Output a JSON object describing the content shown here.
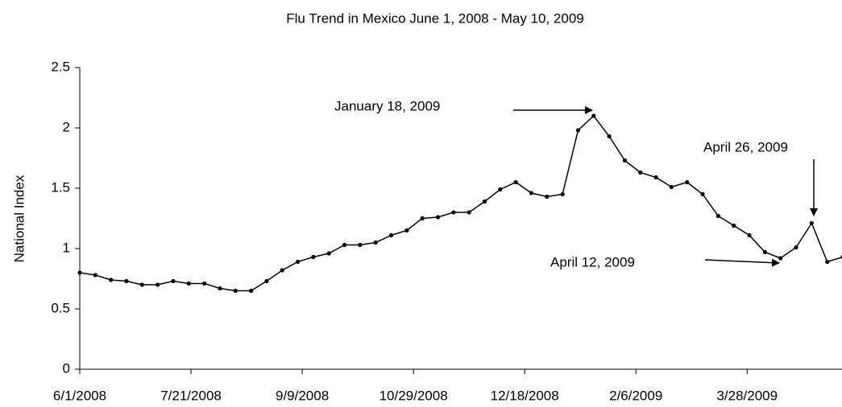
{
  "chart_data": {
    "type": "line",
    "title": "Flu Trend in Mexico June 1, 2008 - May 10, 2009",
    "y_label": "National Index",
    "annotations": [
      "January 18, 2009",
      "April 26, 2009",
      "April 12, 2009"
    ],
    "x": [
      "6/1/2008",
      "6/8/2008",
      "6/15/2008",
      "6/22/2008",
      "6/29/2008",
      "7/6/2008",
      "7/13/2008",
      "7/20/2008",
      "7/27/2008",
      "8/3/2008",
      "8/10/2008",
      "8/17/2008",
      "8/24/2008",
      "8/31/2008",
      "9/7/2008",
      "9/14/2008",
      "9/21/2008",
      "9/28/2008",
      "10/5/2008",
      "10/12/2008",
      "10/19/2008",
      "10/26/2008",
      "11/2/2008",
      "11/9/2008",
      "11/16/2008",
      "11/23/2008",
      "11/30/2008",
      "12/7/2008",
      "12/14/2008",
      "12/21/2008",
      "12/28/2008",
      "1/4/2009",
      "1/11/2009",
      "1/18/2009",
      "1/25/2009",
      "2/1/2009",
      "2/8/2009",
      "2/15/2009",
      "2/22/2009",
      "3/1/2009",
      "3/8/2009",
      "3/15/2009",
      "3/22/2009",
      "3/29/2009",
      "4/5/2009",
      "4/12/2009",
      "4/19/2009",
      "4/26/2009",
      "5/3/2009",
      "5/10/2009"
    ],
    "series": [
      {
        "name": "National Index",
        "color": "#000000",
        "values": [
          0.8,
          0.78,
          0.74,
          0.73,
          0.7,
          0.7,
          0.73,
          0.71,
          0.71,
          0.67,
          0.65,
          0.65,
          0.73,
          0.82,
          0.89,
          0.93,
          0.96,
          1.03,
          1.03,
          1.05,
          1.11,
          1.15,
          1.25,
          1.26,
          1.3,
          1.3,
          1.39,
          1.49,
          1.55,
          1.46,
          1.43,
          1.45,
          1.98,
          2.1,
          1.93,
          1.73,
          1.63,
          1.59,
          1.51,
          1.55,
          1.45,
          1.27,
          1.19,
          1.11,
          0.97,
          0.92,
          1.01,
          1.21,
          0.89,
          0.93
        ]
      }
    ],
    "xlim": [
      "6/1/2008",
      "5/10/2009"
    ],
    "xticks": [
      "6/1/2008",
      "7/21/2008",
      "9/9/2008",
      "10/29/2008",
      "12/18/2008",
      "2/6/2009",
      "3/28/2009"
    ],
    "ylim": [
      0,
      2.5
    ],
    "yticks": [
      0,
      0.5,
      1,
      1.5,
      2,
      2.5
    ],
    "grid": false
  }
}
